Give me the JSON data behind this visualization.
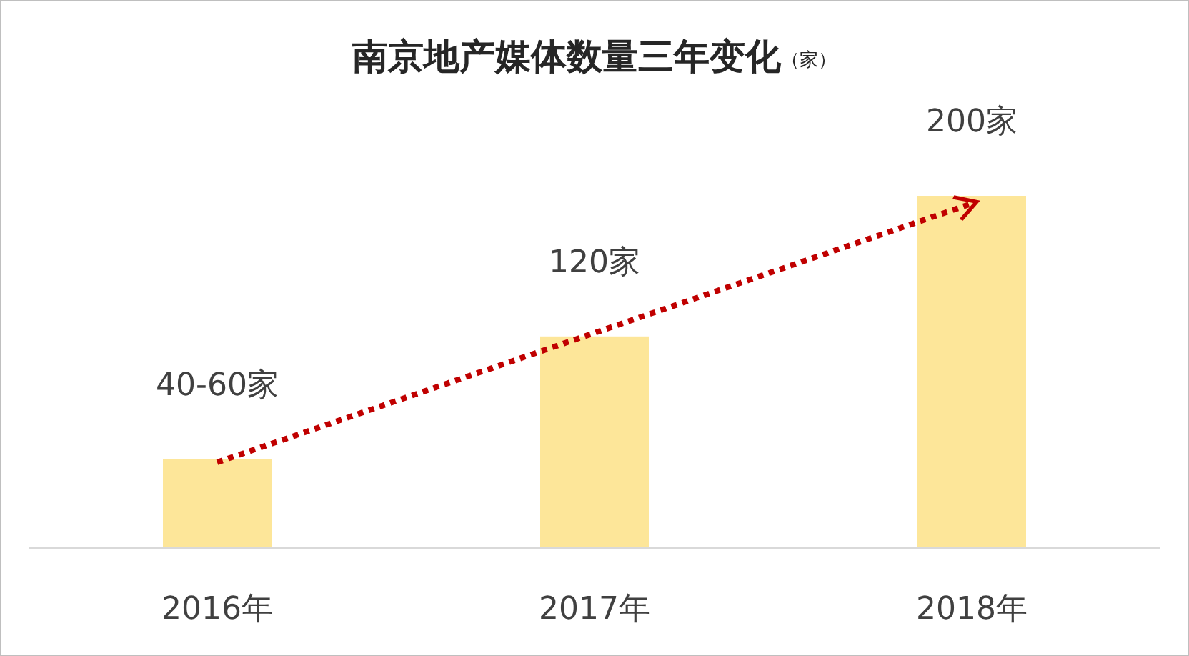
{
  "chart_data": {
    "type": "bar",
    "title": "南京地产媒体数量三年变化",
    "annotations": [
      "（家）"
    ],
    "categories": [
      "2016年",
      "2017年",
      "2018年"
    ],
    "series": [
      {
        "values": [
          50,
          120,
          200
        ],
        "color": "#fde699",
        "value_labels": [
          "40-60家",
          "120家",
          "200家"
        ]
      }
    ]
  }
}
